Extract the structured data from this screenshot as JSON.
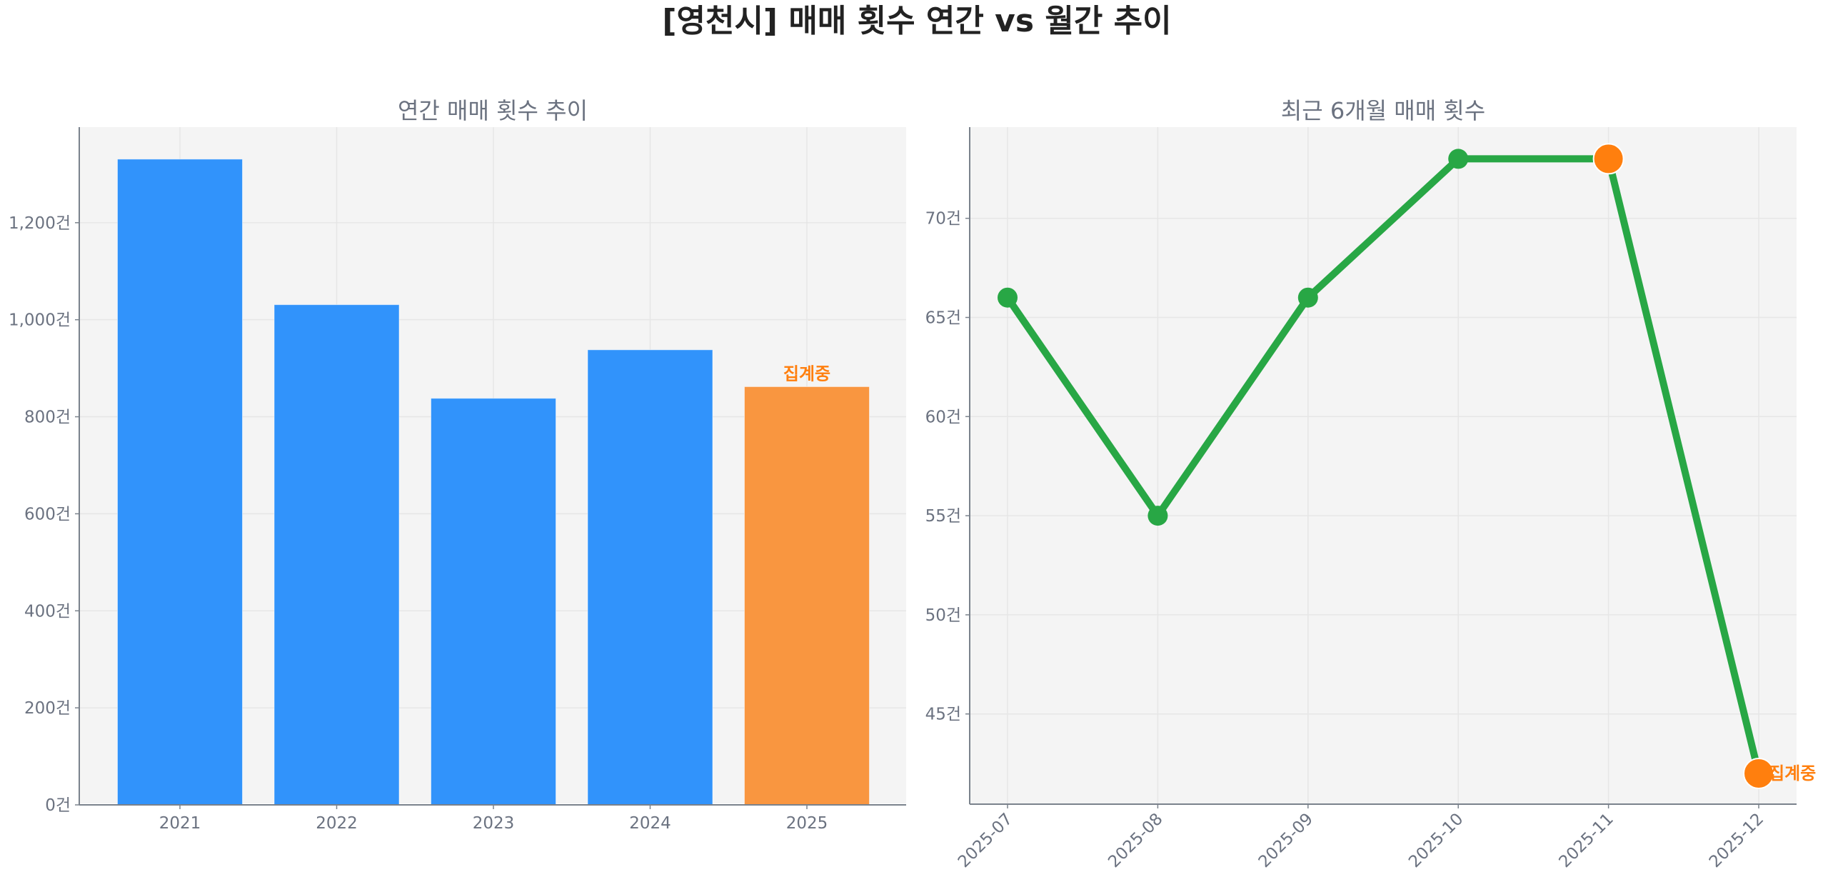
{
  "title": "[영천시] 매매 횟수 연간 vs 월간 추이",
  "colors": {
    "background": "#ffffff",
    "plot_bg": "#f4f4f4",
    "grid": "#e6e6e6",
    "axis": "#7a828c",
    "text": "#6b7280",
    "bar_blue": "#3193fb",
    "bar_orange": "#f99640",
    "line_green": "#28a745",
    "highlight_orange": "#ff7f0e"
  },
  "left_chart": {
    "title": "연간 매매 횟수 추이",
    "y_ticks": [
      "0건",
      "200건",
      "400건",
      "600건",
      "800건",
      "1,000건",
      "1,200건"
    ],
    "annotation": "집계중"
  },
  "right_chart": {
    "title": "최근 6개월 매매 횟수",
    "y_ticks": [
      "45건",
      "50건",
      "55건",
      "60건",
      "65건",
      "70건"
    ],
    "annotation": "집계중"
  },
  "chart_data": [
    {
      "type": "bar",
      "title": "연간 매매 횟수 추이",
      "categories": [
        "2021",
        "2022",
        "2023",
        "2024",
        "2025"
      ],
      "values": [
        1331,
        1031,
        838,
        938,
        862
      ],
      "bar_colors": [
        "#3193fb",
        "#3193fb",
        "#3193fb",
        "#3193fb",
        "#f99640"
      ],
      "annotations": [
        {
          "category": "2025",
          "text": "집계중"
        }
      ],
      "xlabel": "",
      "ylabel": "",
      "y_tick_values": [
        0,
        200,
        400,
        600,
        800,
        1000,
        1200
      ],
      "y_tick_labels": [
        "0건",
        "200건",
        "400건",
        "600건",
        "800건",
        "1,000건",
        "1,200건"
      ],
      "ylim": [
        0,
        1397
      ],
      "grid": true
    },
    {
      "type": "line",
      "title": "최근 6개월 매매 횟수",
      "categories": [
        "2025-07",
        "2025-08",
        "2025-09",
        "2025-10",
        "2025-11",
        "2025-12"
      ],
      "values": [
        66,
        55,
        66,
        73,
        73,
        42
      ],
      "highlight_points": [
        "2025-11",
        "2025-12"
      ],
      "annotations": [
        {
          "category": "2025-12",
          "text": "집계중"
        }
      ],
      "xlabel": "",
      "ylabel": "",
      "y_tick_values": [
        45,
        50,
        55,
        60,
        65,
        70
      ],
      "y_tick_labels": [
        "45건",
        "50건",
        "55건",
        "60건",
        "65건",
        "70건"
      ],
      "ylim": [
        40.45,
        74.6
      ],
      "x_tick_rotation": 45,
      "grid": true
    }
  ]
}
